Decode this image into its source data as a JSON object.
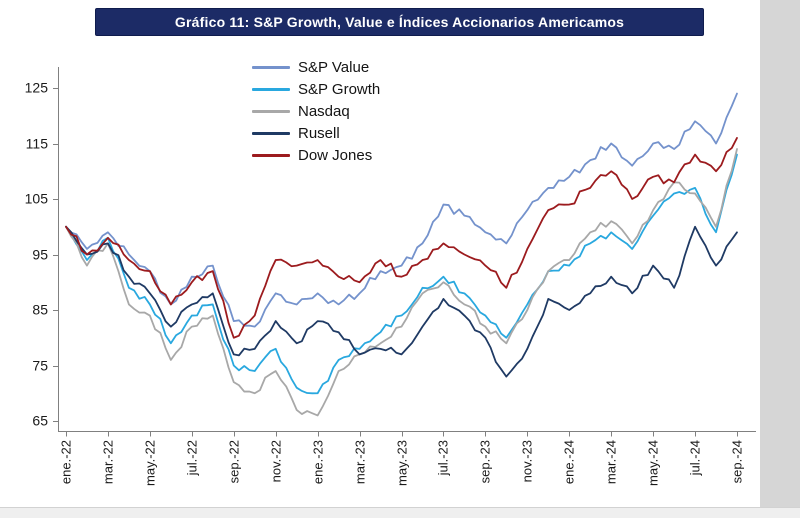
{
  "title_bar": {
    "text": "Gráfico 11: S&P Growth, Value e Índices Accionarios Americamos",
    "bg": "#1c2b66",
    "fg": "#ffffff"
  },
  "chart_data": {
    "type": "line",
    "title": "Gráfico 11: S&P Growth, Value e Índices Accionarios Americamos",
    "xlabel": "",
    "ylabel": "",
    "ylim": [
      63,
      128
    ],
    "yticks": [
      65,
      75,
      85,
      95,
      105,
      115,
      125
    ],
    "grid": false,
    "legend_position": "top-inside",
    "x_is_monthly_index_jan22_to_sep24": true,
    "x_tick_labels": [
      "ene.-22",
      "mar.-22",
      "may.-22",
      "jul.-22",
      "sep.-22",
      "nov.-22",
      "ene.-23",
      "mar.-23",
      "may.-23",
      "jul.-23",
      "sep.-23",
      "nov.-23",
      "ene.-24",
      "mar.-24",
      "may.-24",
      "jul.-24",
      "sep.-24"
    ],
    "noise_amplitude": 0.9,
    "axis_color": "#808080",
    "tick_label_color": "#1a1a1a",
    "series": [
      {
        "name": "S&P Value",
        "color": "#7492cc",
        "values": [
          100,
          96,
          99,
          95,
          92,
          86,
          91,
          93,
          83,
          82,
          88,
          86,
          88,
          86,
          88,
          92,
          93,
          97,
          104,
          102,
          99,
          97,
          103,
          107,
          109,
          112,
          115,
          111,
          115,
          114,
          119,
          115,
          124
        ]
      },
      {
        "name": "S&P Growth",
        "color": "#29a8df",
        "values": [
          100,
          94,
          98,
          89,
          86,
          79,
          84,
          86,
          75,
          74,
          78,
          71,
          70,
          76,
          78,
          81,
          84,
          89,
          91,
          88,
          84,
          80,
          86,
          92,
          93,
          97,
          99,
          96,
          102,
          106,
          107,
          99,
          113
        ]
      },
      {
        "name": "Nasdaq",
        "color": "#a8a8a8",
        "values": [
          100,
          93,
          97,
          86,
          84,
          76,
          82,
          84,
          72,
          70,
          74,
          67,
          66,
          74,
          77,
          79,
          82,
          88,
          90,
          86,
          82,
          79,
          85,
          92,
          94,
          99,
          101,
          97,
          103,
          108,
          106,
          100,
          114
        ]
      },
      {
        "name": "Rusell",
        "color": "#1f3a64",
        "values": [
          100,
          95,
          97,
          91,
          88,
          82,
          86,
          88,
          77,
          78,
          83,
          79,
          83,
          81,
          77,
          78,
          77,
          82,
          87,
          84,
          80,
          73,
          78,
          87,
          85,
          88,
          91,
          88,
          93,
          89,
          100,
          93,
          99
        ]
      },
      {
        "name": "Dow Jones",
        "color": "#9c1b1e",
        "values": [
          100,
          95,
          98,
          94,
          92,
          86,
          90,
          92,
          80,
          84,
          94,
          93,
          94,
          91,
          90,
          94,
          91,
          94,
          97,
          95,
          93,
          89,
          96,
          103,
          104,
          107,
          110,
          105,
          109,
          108,
          113,
          110,
          116
        ]
      }
    ]
  }
}
